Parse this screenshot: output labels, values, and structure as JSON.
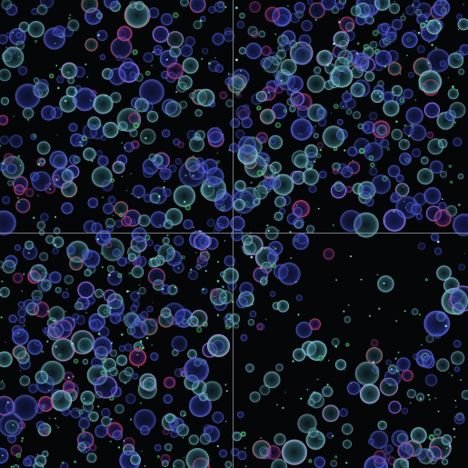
{
  "image": {
    "kind": "fluorescence microscopy mosaic",
    "background_color": "#050608",
    "tiles": {
      "rows": 2,
      "cols": 2
    },
    "seam_color": "#8a8f96",
    "channels": [
      {
        "name": "blue",
        "color": "#3d4fd8"
      },
      {
        "name": "cyan",
        "color": "#5fb4c6"
      },
      {
        "name": "green",
        "color": "#38c46a"
      },
      {
        "name": "red",
        "color": "#d23a48"
      }
    ],
    "cell_color_mix": {
      "blue": 0.45,
      "cyan": 0.4,
      "green": 0.08,
      "red": 0.07
    }
  }
}
